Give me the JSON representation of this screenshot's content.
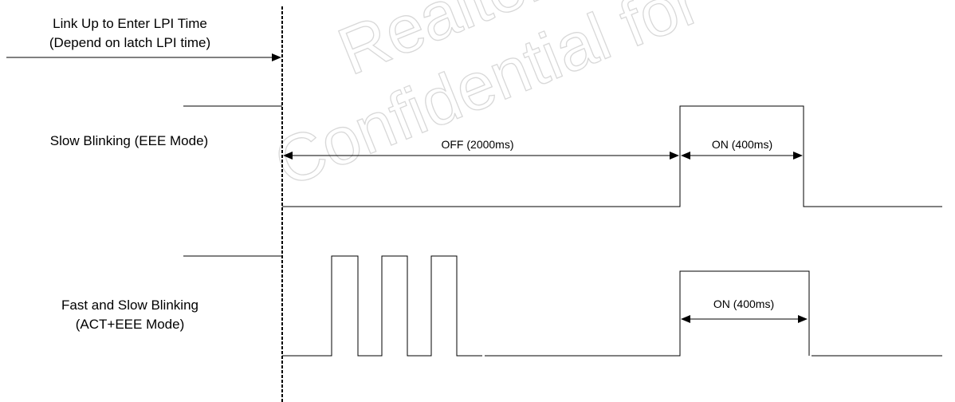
{
  "watermark": {
    "line1": "Realtek",
    "line2": "Confidential for"
  },
  "labels": {
    "link_up_line1": "Link Up to Enter LPI Time",
    "link_up_line2": "(Depend on latch LPI time)",
    "slow_blinking": "Slow Blinking (EEE Mode)",
    "fast_slow_line1": "Fast and Slow Blinking",
    "fast_slow_line2": "(ACT+EEE Mode)",
    "off_duration": "OFF (2000ms)",
    "on_duration_slow": "ON (400ms)",
    "on_duration_fast": "ON (400ms)"
  },
  "colors": {
    "line": "#000000",
    "watermark": "#d8d8d8"
  }
}
